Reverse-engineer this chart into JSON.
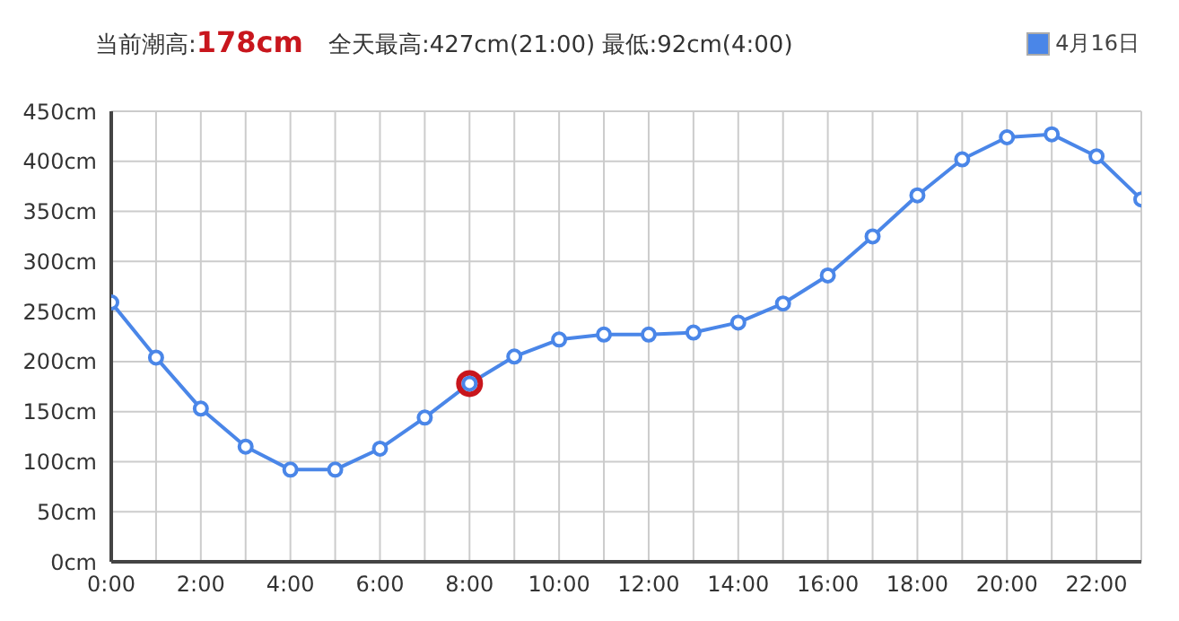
{
  "chart_data": {
    "type": "line",
    "title": "全天最高:427cm(21:00) 最低:92cm(4:00)",
    "annotations": [
      "当前潮高:178cm"
    ],
    "x": [
      0,
      1,
      2,
      3,
      4,
      5,
      6,
      7,
      8,
      9,
      10,
      11,
      12,
      13,
      14,
      15,
      16,
      17,
      18,
      19,
      20,
      21,
      22,
      23
    ],
    "series": [
      {
        "name": "4月16日",
        "color": "#4a86e8",
        "values": [
          259,
          204,
          153,
          115,
          92,
          92,
          113,
          144,
          178,
          205,
          222,
          227,
          227,
          229,
          239,
          258,
          286,
          325,
          366,
          402,
          424,
          427,
          405,
          362
        ]
      },
      {
        "type": "scatter",
        "color": "#c8161d",
        "x": [
          8
        ],
        "values": [
          178
        ]
      }
    ],
    "xlim": [
      0,
      23
    ],
    "xticks": [
      {
        "value": 0,
        "label": "0:00"
      },
      {
        "value": 1,
        "label": null
      },
      {
        "value": 2,
        "label": "2:00"
      },
      {
        "value": 3,
        "label": null
      },
      {
        "value": 4,
        "label": "4:00"
      },
      {
        "value": 5,
        "label": null
      },
      {
        "value": 6,
        "label": "6:00"
      },
      {
        "value": 7,
        "label": null
      },
      {
        "value": 8,
        "label": "8:00"
      },
      {
        "value": 9,
        "label": null
      },
      {
        "value": 10,
        "label": "10:00"
      },
      {
        "value": 11,
        "label": null
      },
      {
        "value": 12,
        "label": "12:00"
      },
      {
        "value": 13,
        "label": null
      },
      {
        "value": 14,
        "label": "14:00"
      },
      {
        "value": 15,
        "label": null
      },
      {
        "value": 16,
        "label": "16:00"
      },
      {
        "value": 17,
        "label": null
      },
      {
        "value": 18,
        "label": "18:00"
      },
      {
        "value": 19,
        "label": null
      },
      {
        "value": 20,
        "label": "20:00"
      },
      {
        "value": 21,
        "label": null
      },
      {
        "value": 22,
        "label": "22:00"
      },
      {
        "value": 23,
        "label": null
      }
    ],
    "ylim": [
      0,
      450
    ],
    "yticks": [
      {
        "value": 0,
        "label": "0cm"
      },
      {
        "value": 50,
        "label": "50cm"
      },
      {
        "value": 100,
        "label": "100cm"
      },
      {
        "value": 150,
        "label": "150cm"
      },
      {
        "value": 200,
        "label": "200cm"
      },
      {
        "value": 250,
        "label": "250cm"
      },
      {
        "value": 300,
        "label": "300cm"
      },
      {
        "value": 350,
        "label": "350cm"
      },
      {
        "value": 400,
        "label": "400cm"
      },
      {
        "value": 450,
        "label": "450cm"
      }
    ],
    "grid": true,
    "legend": "top right",
    "marker": "circle",
    "line_style": "solid"
  }
}
